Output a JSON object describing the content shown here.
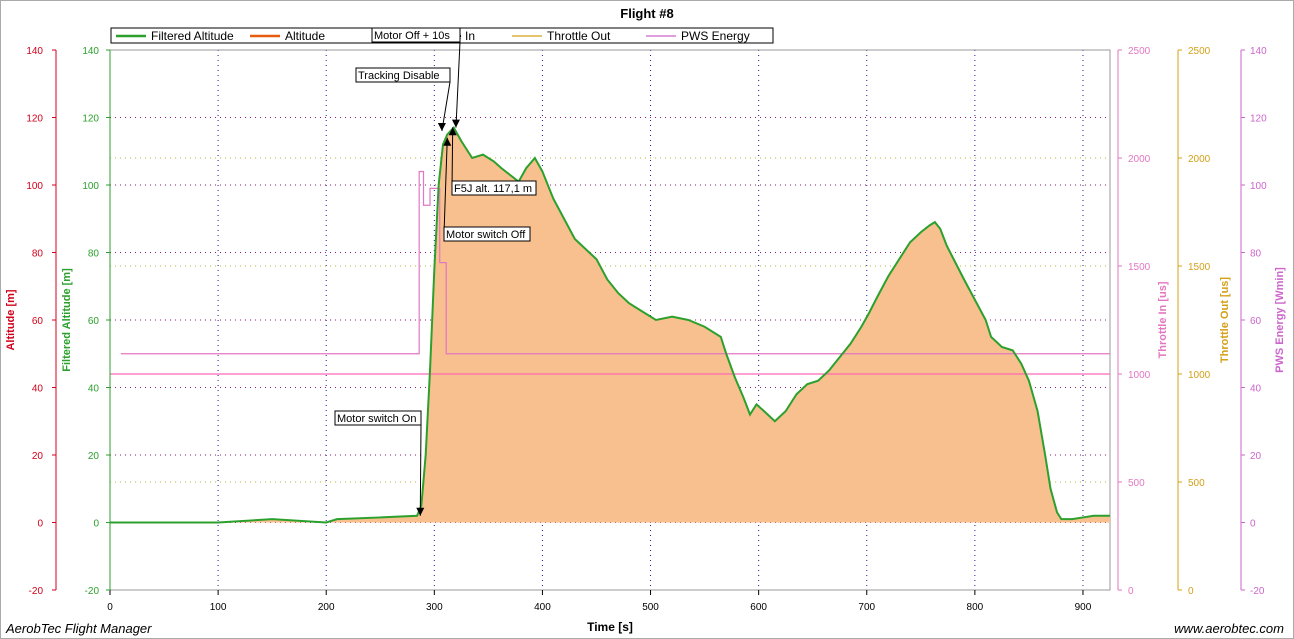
{
  "footer": {
    "left": "AerobTec Flight Manager",
    "right": "www.aerobtec.com"
  },
  "chart_data": {
    "type": "area",
    "title": "Flight #8",
    "xlabel": "Time [s]",
    "xlim": [
      0,
      925
    ],
    "x_ticks": [
      0,
      100,
      200,
      300,
      400,
      500,
      600,
      700,
      800,
      900
    ],
    "grid": true,
    "legend_position": "top",
    "legend": [
      "Filtered Altitude",
      "Altitude",
      "Throttle In",
      "Throttle Out",
      "PWS Energy"
    ],
    "axes": [
      {
        "id": "altitude",
        "label": "Altitude [m]",
        "side": "left",
        "range": [
          -20,
          140
        ],
        "ticks": [
          -20,
          0,
          20,
          40,
          60,
          80,
          100,
          120,
          140
        ],
        "color": "#d0021b"
      },
      {
        "id": "filtered_altitude",
        "label": "Filtered Altitude [m]",
        "side": "left",
        "range": [
          -20,
          140
        ],
        "ticks": [
          -20,
          0,
          20,
          40,
          60,
          80,
          100,
          120,
          140
        ],
        "color": "#2ca02c"
      },
      {
        "id": "throttle_in",
        "label": "Throttle In [us]",
        "side": "right",
        "range": [
          0,
          2500
        ],
        "ticks": [
          0,
          500,
          1000,
          1500,
          2000,
          2500
        ],
        "color": "#e377c2"
      },
      {
        "id": "throttle_out",
        "label": "Throttle Out [us]",
        "side": "right",
        "range": [
          0,
          2500
        ],
        "ticks": [
          0,
          500,
          1000,
          1500,
          2000,
          2500
        ],
        "color": "#d4a017"
      },
      {
        "id": "pws_energy",
        "label": "PWS Energy [Wmin]",
        "side": "right",
        "range": [
          -20,
          140
        ],
        "ticks": [
          -20,
          0,
          20,
          40,
          60,
          80,
          100,
          120,
          140
        ],
        "color": "#cc66cc"
      }
    ],
    "series": [
      {
        "name": "Filtered Altitude",
        "axis": "filtered_altitude",
        "color": "#2ca02c",
        "fill": "#f7c08e",
        "x": [
          0,
          50,
          100,
          150,
          200,
          210,
          250,
          284,
          288,
          292,
          296,
          300,
          304,
          308,
          312,
          318,
          325,
          335,
          345,
          355,
          362,
          370,
          378,
          385,
          393,
          400,
          410,
          420,
          430,
          440,
          450,
          460,
          470,
          480,
          495,
          505,
          520,
          535,
          550,
          565,
          570,
          578,
          586,
          592,
          598,
          605,
          615,
          625,
          635,
          645,
          655,
          665,
          675,
          685,
          695,
          702,
          710,
          720,
          730,
          740,
          750,
          758,
          763,
          768,
          774,
          782,
          790,
          800,
          810,
          815,
          825,
          835,
          843,
          850,
          858,
          865,
          870,
          876,
          880,
          885,
          890,
          900,
          910,
          925
        ],
        "values": [
          0,
          0,
          0,
          1,
          0,
          1,
          1.5,
          2,
          5,
          20,
          45,
          75,
          100,
          112,
          115,
          117,
          113,
          108,
          109,
          107,
          105,
          103,
          101,
          105,
          108,
          104,
          96,
          90,
          84,
          81,
          78,
          72,
          68,
          65,
          62,
          60,
          61,
          60,
          58,
          55,
          50,
          43,
          37,
          32,
          35,
          33,
          30,
          33,
          38,
          41,
          42,
          45,
          49,
          53,
          58,
          62,
          67,
          73,
          78,
          83,
          86,
          88,
          89,
          87,
          82,
          77,
          72,
          66,
          60,
          55,
          52,
          51,
          47,
          42,
          33,
          20,
          10,
          3,
          1,
          1,
          1,
          1.5,
          2,
          2
        ]
      },
      {
        "name": "PWS Energy",
        "axis": "pws_energy",
        "color": "#e377c2",
        "x": [
          10,
          286,
          286,
          290,
          290,
          296,
          296,
          305,
          305,
          311,
          311,
          925
        ],
        "values": [
          50,
          50,
          104,
          104,
          94,
          94,
          99,
          99,
          77,
          77,
          50,
          50
        ]
      },
      {
        "name": "Throttle In",
        "axis": "throttle_in",
        "color": "#ff69b4",
        "x": [
          0,
          925
        ],
        "values": [
          1000,
          1000
        ]
      }
    ],
    "annotations": [
      {
        "text": "Motor switch On",
        "x": 287,
        "y": 2
      },
      {
        "text": "Motor Off + 10s",
        "x": 320,
        "y": 117
      },
      {
        "text": "Tracking Disable",
        "x": 307,
        "y": 116
      },
      {
        "text": "F5J alt. 117,1 m",
        "x": 317,
        "y": 117.1
      },
      {
        "text": "Motor switch Off",
        "x": 312,
        "y": 114
      }
    ]
  }
}
